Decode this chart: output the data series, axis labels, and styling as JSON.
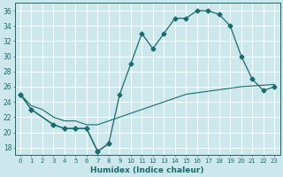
{
  "xlabel": "Humidex (Indice chaleur)",
  "bg_color": "#cce8ec",
  "line_color": "#1a6b6b",
  "grid_color": "#ffffff",
  "xlim": [
    -0.5,
    23.5
  ],
  "ylim": [
    17,
    37
  ],
  "yticks": [
    18,
    20,
    22,
    24,
    26,
    28,
    30,
    32,
    34,
    36
  ],
  "xticks": [
    0,
    1,
    2,
    3,
    4,
    5,
    6,
    7,
    8,
    9,
    10,
    11,
    12,
    13,
    14,
    15,
    16,
    17,
    18,
    19,
    20,
    21,
    22,
    23
  ],
  "line1": {
    "x": [
      0,
      1,
      3,
      4,
      5,
      6,
      7,
      8,
      9,
      10,
      11,
      12,
      13,
      14,
      15,
      16,
      17,
      18,
      19,
      20,
      21,
      22,
      23
    ],
    "y": [
      25,
      23,
      21,
      20.5,
      20.5,
      20.5,
      17.5,
      18.5,
      25,
      29,
      33,
      31,
      33,
      35,
      35,
      36,
      36,
      35.5,
      34,
      30,
      27,
      25.5,
      26
    ]
  },
  "line2": {
    "x": [
      0,
      1,
      3,
      4,
      5,
      6,
      7,
      8
    ],
    "y": [
      25,
      23,
      21,
      20.5,
      20.5,
      20.5,
      17.5,
      18.5
    ]
  },
  "line3": {
    "x": [
      0,
      1,
      2,
      3,
      4,
      5,
      6,
      7,
      8,
      9,
      10,
      11,
      12,
      13,
      14,
      15,
      16,
      17,
      18,
      19,
      20,
      21,
      22,
      23
    ],
    "y": [
      25,
      23.5,
      23,
      22,
      21.5,
      21.5,
      21,
      21,
      21.5,
      22,
      22.5,
      23,
      23.5,
      24,
      24.5,
      25,
      25.2,
      25.4,
      25.6,
      25.8,
      26,
      26.1,
      26.2,
      26.3
    ]
  }
}
